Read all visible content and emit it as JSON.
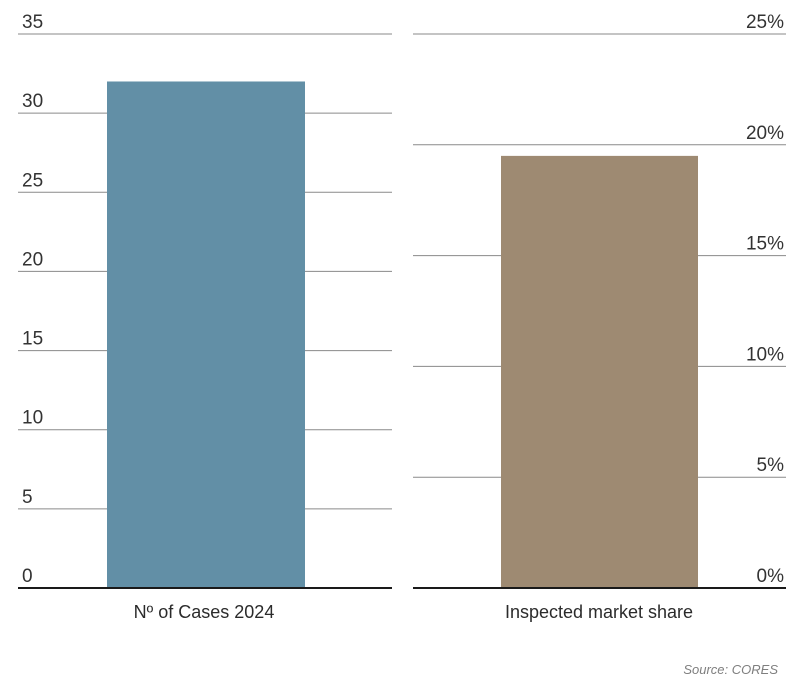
{
  "chart_data": [
    {
      "type": "bar",
      "categories": [
        "Nº of Cases 2024"
      ],
      "values": [
        32
      ],
      "ylim": [
        0,
        35
      ],
      "yticks": [
        0,
        5,
        10,
        15,
        20,
        25,
        30,
        35
      ],
      "ytick_labels": [
        "0",
        "5",
        "10",
        "15",
        "20",
        "25",
        "30",
        "35"
      ],
      "axis_side": "left",
      "grid": true,
      "color": "#628fa6"
    },
    {
      "type": "bar",
      "categories": [
        "Inspected market share"
      ],
      "values": [
        19.5
      ],
      "unit": "%",
      "ylim": [
        0,
        25
      ],
      "yticks": [
        0,
        5,
        10,
        15,
        20,
        25
      ],
      "ytick_labels": [
        "0%",
        "5%",
        "10%",
        "15%",
        "20%",
        "25%"
      ],
      "axis_side": "right",
      "grid": true,
      "color": "#9e8a72"
    }
  ],
  "source": "Source: CORES"
}
